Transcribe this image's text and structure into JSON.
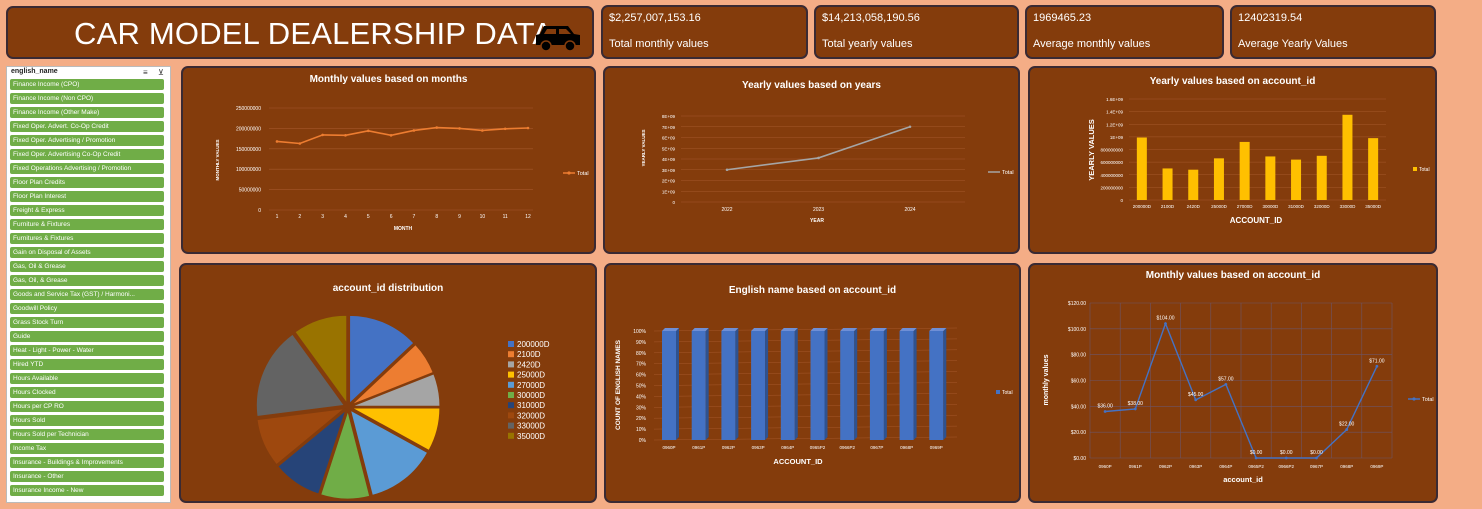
{
  "dashboard": {
    "title": "CAR MODEL DEALERSHIP DATA",
    "title_icon": "car-icon"
  },
  "kpis": [
    {
      "value": "$2,257,007,153.16",
      "label": "Total monthly values"
    },
    {
      "value": "$14,213,058,190.56",
      "label": "Total yearly values"
    },
    {
      "value": "1969465.23",
      "label": "Average monthly values"
    },
    {
      "value": "12402319.54",
      "label": "Average Yearly Values"
    }
  ],
  "slicer": {
    "title": "english_name",
    "multi_select_icon": "multi-select-icon",
    "clear_filter_icon": "clear-filter-icon",
    "items": [
      "Finance Income (CPO)",
      "Finance Income (Non CPO)",
      "Finance Income (Other Make)",
      "Fixed Oper. Advert. Co-Op Credit",
      "Fixed Oper. Advertising / Promotion",
      "Fixed Oper. Advertising Co-Op Credit",
      "Fixed Operations Advertising / Promotion",
      "Floor Plan Credits",
      "Floor Plan Interest",
      "Freight & Express",
      "Furniture & Fixtures",
      "Furnitures & Fixtures",
      "Gain on Disposal of Assets",
      "Gas, Oil & Grease",
      "Gas, Oil, & Grease",
      "Goods and Service Tax (GST) / Harmoni...",
      "Goodwill Policy",
      "Grass Stock Turn",
      "Guide",
      "Heat - Light - Power - Water",
      "Hired YTD",
      "Hours Available",
      "Hours Clocked",
      "Hours per CP RO",
      "Hours Sold",
      "Hours Sold per Technician",
      "Income Tax",
      "Insurance - Buildings & Improvements",
      "Insurance - Other",
      "Insurance Income - New"
    ]
  },
  "charts": {
    "monthly": {
      "title": "Monthly values based on months",
      "xlabel": "MONTH",
      "ylabel": "MONTHLY VALUES",
      "legend": "Total",
      "yticks": [
        "0",
        "50000000",
        "100000000",
        "150000000",
        "200000000",
        "250000000"
      ],
      "xticks": [
        "1",
        "2",
        "3",
        "4",
        "5",
        "6",
        "7",
        "8",
        "9",
        "10",
        "11",
        "12"
      ]
    },
    "yearly": {
      "title": "Yearly values based on years",
      "xlabel": "YEAR",
      "ylabel": "YEARLY VALUES",
      "legend": "Total",
      "yticks": [
        "0",
        "1E+09",
        "2E+09",
        "3E+09",
        "4E+09",
        "5E+09",
        "6E+09",
        "7E+09",
        "8E+09"
      ],
      "xticks": [
        "2022",
        "2023",
        "2024"
      ]
    },
    "yearly_account": {
      "title": "Yearly values based on account_id",
      "xlabel": "ACCOUNT_ID",
      "ylabel": "YEARLY VALUES",
      "legend": "Total",
      "yticks": [
        "0",
        "200000000",
        "400000000",
        "600000000",
        "800000000",
        "1E+09",
        "1.2E+09",
        "1.4E+09",
        "1.6E+09"
      ],
      "xticks": [
        "200000D",
        "2100D",
        "2420D",
        "25000D",
        "27000D",
        "30000D",
        "31000D",
        "32000D",
        "33000D",
        "35000D"
      ]
    },
    "pie": {
      "title": "account_id distribution",
      "legend": [
        "200000D",
        "2100D",
        "2420D",
        "25000D",
        "27000D",
        "30000D",
        "31000D",
        "32000D",
        "33000D",
        "35000D"
      ]
    },
    "english": {
      "title": "English name based on account_id",
      "xlabel": "ACCOUNT_ID",
      "ylabel": "COUNT OF ENGLISH NAMES",
      "legend": "Total",
      "yticks": [
        "0%",
        "10%",
        "20%",
        "30%",
        "40%",
        "50%",
        "60%",
        "70%",
        "80%",
        "90%",
        "100%"
      ],
      "xticks": [
        "0960P",
        "0961P",
        "0962P",
        "0963P",
        "0964P",
        "0965P2",
        "0966P2",
        "0967P",
        "0968P",
        "0969P"
      ]
    },
    "monthly_account": {
      "title": "Monthly values based on  account_id",
      "xlabel": "account_id",
      "ylabel": "monthly values",
      "legend": "Total",
      "yticks": [
        "$0.00",
        "$20.00",
        "$40.00",
        "$60.00",
        "$80.00",
        "$100.00",
        "$120.00"
      ],
      "xticks": [
        "0960P",
        "0961P",
        "0962P",
        "0963P",
        "0964P",
        "0965P2",
        "0966P2",
        "0967P",
        "0968P",
        "0969P"
      ],
      "data_labels": [
        "$36.00",
        "$38.00",
        "$104.00",
        "$45.00",
        "$57.00",
        "$0.00",
        "$0.00",
        "$0.00",
        "$22.00",
        "$71.00"
      ]
    }
  },
  "chart_data": [
    {
      "type": "line",
      "title": "Monthly values based on months",
      "xlabel": "MONTH",
      "ylabel": "MONTHLY VALUES",
      "x": [
        1,
        2,
        3,
        4,
        5,
        6,
        7,
        8,
        9,
        10,
        11,
        12
      ],
      "series": [
        {
          "name": "Total",
          "values": [
            168000000,
            163000000,
            184000000,
            183000000,
            194000000,
            183000000,
            195000000,
            202000000,
            200000000,
            195000000,
            199000000,
            201000000
          ]
        }
      ],
      "ylim": [
        0,
        250000000
      ],
      "color": "#ed7d31",
      "legend_position": "right"
    },
    {
      "type": "line",
      "title": "Yearly values based on years",
      "xlabel": "YEAR",
      "ylabel": "YEARLY VALUES",
      "x": [
        2022,
        2023,
        2024
      ],
      "series": [
        {
          "name": "Total",
          "values": [
            3000000000,
            4100000000,
            7000000000
          ]
        }
      ],
      "ylim": [
        0,
        8000000000
      ],
      "color": "#a5a5a5",
      "legend_position": "right"
    },
    {
      "type": "bar",
      "title": "Yearly values based on account_id",
      "xlabel": "ACCOUNT_ID",
      "ylabel": "YEARLY VALUES",
      "categories": [
        "200000D",
        "2100D",
        "2420D",
        "25000D",
        "27000D",
        "30000D",
        "31000D",
        "32000D",
        "33000D",
        "35000D"
      ],
      "series": [
        {
          "name": "Total",
          "values": [
            990000000,
            500000000,
            480000000,
            660000000,
            920000000,
            690000000,
            640000000,
            700000000,
            1350000000,
            980000000
          ]
        }
      ],
      "ylim": [
        0,
        1600000000
      ],
      "color": "#ffc000",
      "legend_position": "right"
    },
    {
      "type": "pie",
      "title": "account_id distribution",
      "categories": [
        "200000D",
        "2100D",
        "2420D",
        "25000D",
        "27000D",
        "30000D",
        "31000D",
        "32000D",
        "33000D",
        "35000D"
      ],
      "values": [
        13,
        6,
        6,
        8,
        13,
        9,
        9,
        9,
        17,
        10
      ],
      "colors": [
        "#4472c4",
        "#ed7d31",
        "#a5a5a5",
        "#ffc000",
        "#5b9bd5",
        "#70ad47",
        "#264478",
        "#9e480e",
        "#636363",
        "#997300"
      ],
      "legend_position": "right"
    },
    {
      "type": "bar",
      "title": "English name based on account_id",
      "xlabel": "ACCOUNT_ID",
      "ylabel": "COUNT OF ENGLISH NAMES",
      "categories": [
        "0960P",
        "0961P",
        "0962P",
        "0963P",
        "0964P",
        "0965P2",
        "0966P2",
        "0967P",
        "0968P",
        "0969P"
      ],
      "series": [
        {
          "name": "Total",
          "values": [
            100,
            100,
            100,
            100,
            100,
            100,
            100,
            100,
            100,
            100
          ]
        }
      ],
      "ylim": [
        0,
        100
      ],
      "unit": "%",
      "color": "#4472c4",
      "legend_position": "right"
    },
    {
      "type": "line",
      "title": "Monthly values based on  account_id",
      "xlabel": "account_id",
      "ylabel": "monthly values",
      "categories": [
        "0960P",
        "0961P",
        "0962P",
        "0963P",
        "0964P",
        "0965P2",
        "0966P2",
        "0967P",
        "0968P",
        "0969P"
      ],
      "series": [
        {
          "name": "Total",
          "values": [
            36,
            38,
            104,
            45,
            57,
            0,
            0,
            0,
            22,
            71
          ]
        }
      ],
      "ylim": [
        0,
        120
      ],
      "color": "#4472c4",
      "grid": true,
      "legend_position": "right"
    }
  ]
}
